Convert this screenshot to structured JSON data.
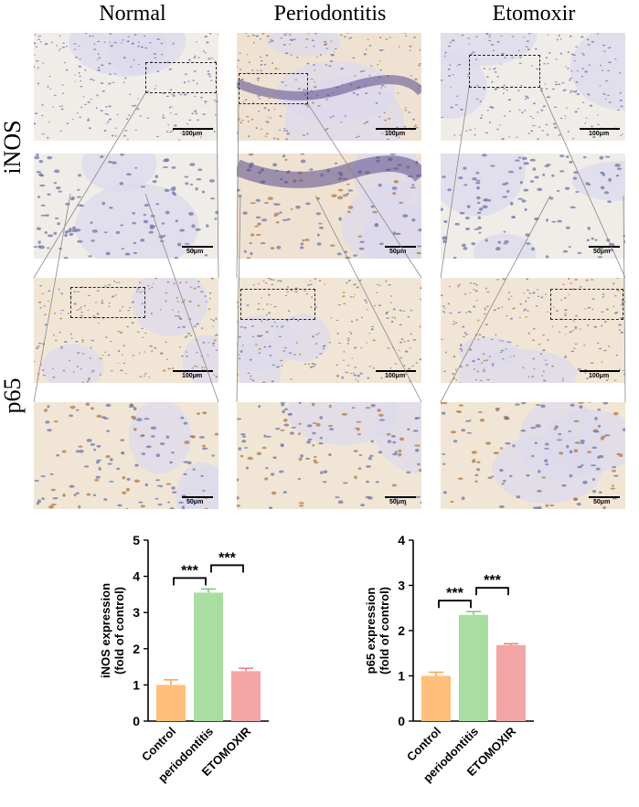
{
  "figure": {
    "columns": [
      "Normal",
      "Periodontitis",
      "Etomoxir"
    ],
    "rows": [
      "iNOS",
      "p65"
    ],
    "scale_bar_overview": "100μm",
    "scale_bar_zoom": "50μm"
  },
  "chart_data": [
    {
      "type": "bar",
      "categories": [
        "Control",
        "periodontitis",
        "ETOMOXIR"
      ],
      "values": [
        1.0,
        3.55,
        1.38
      ],
      "errors": [
        0.14,
        0.1,
        0.08
      ],
      "ylabel_line1": "iNOS expression",
      "ylabel_line2": "(fold of control)",
      "ylim": [
        0,
        5
      ],
      "yticks": [
        0,
        1,
        2,
        3,
        4,
        5
      ],
      "bar_colors": [
        "#FFBE7A",
        "#A9DDA2",
        "#F4A6A6"
      ],
      "error_colors": [
        "#F2A54E",
        "#7CC477",
        "#E87F7F"
      ],
      "significance": [
        {
          "from": 0,
          "to": 1,
          "label": "***"
        },
        {
          "from": 1,
          "to": 2,
          "label": "***"
        }
      ]
    },
    {
      "type": "bar",
      "categories": [
        "Control",
        "periodontitis",
        "ETOMOXIR"
      ],
      "values": [
        1.0,
        2.35,
        1.68
      ],
      "errors": [
        0.08,
        0.07,
        0.03
      ],
      "ylabel_line1": "p65 expression",
      "ylabel_line2": "(fold of control)",
      "ylim": [
        0,
        4
      ],
      "yticks": [
        0,
        1,
        2,
        3,
        4
      ],
      "bar_colors": [
        "#FFBE7A",
        "#A9DDA2",
        "#F4A6A6"
      ],
      "error_colors": [
        "#F2A54E",
        "#7CC477",
        "#E87F7F"
      ],
      "significance": [
        {
          "from": 0,
          "to": 1,
          "label": "***"
        },
        {
          "from": 1,
          "to": 2,
          "label": "***"
        }
      ]
    }
  ]
}
